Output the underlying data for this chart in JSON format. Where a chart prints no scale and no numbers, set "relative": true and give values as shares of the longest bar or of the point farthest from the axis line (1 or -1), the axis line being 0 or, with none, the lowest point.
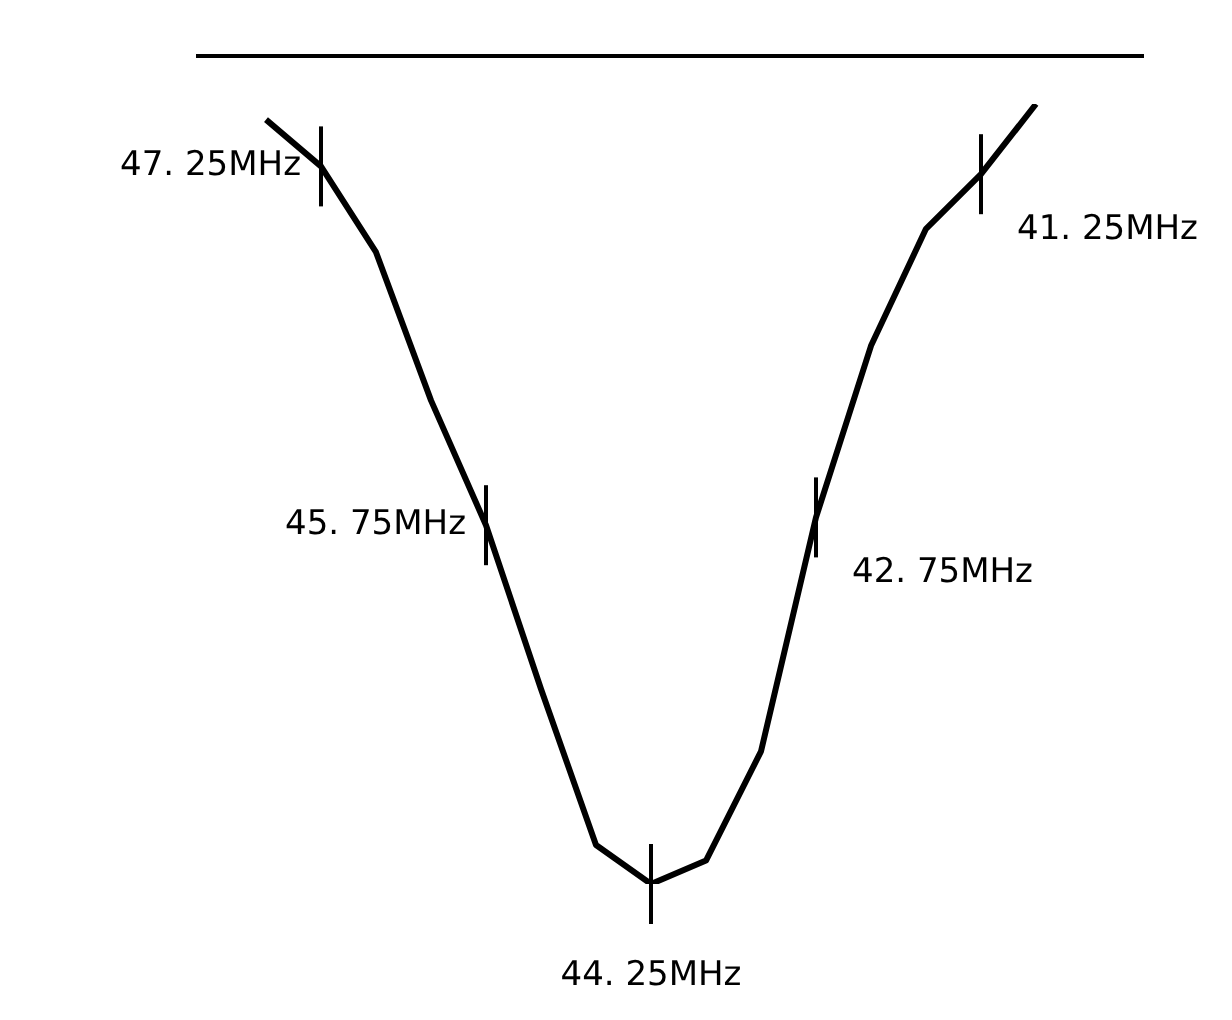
{
  "chart_data": {
    "type": "line",
    "relative": true,
    "categories": [
      null,
      null,
      null,
      null,
      null,
      null,
      null,
      null,
      null,
      null,
      null,
      null,
      null,
      null,
      null
    ],
    "series": [
      {
        "color": "#000000",
        "values": [
          0.98,
          0.92,
          0.81,
          0.62,
          0.46,
          0.25,
          0.05,
          0,
          0.03,
          0.17,
          0.47,
          0.69,
          0.84,
          0.91,
          1
        ]
      }
    ],
    "annotations": [
      "47. 25MHz",
      "45. 75MHz",
      "44. 25MHz",
      "42. 75MHz",
      "41. 25MHz"
    ]
  }
}
